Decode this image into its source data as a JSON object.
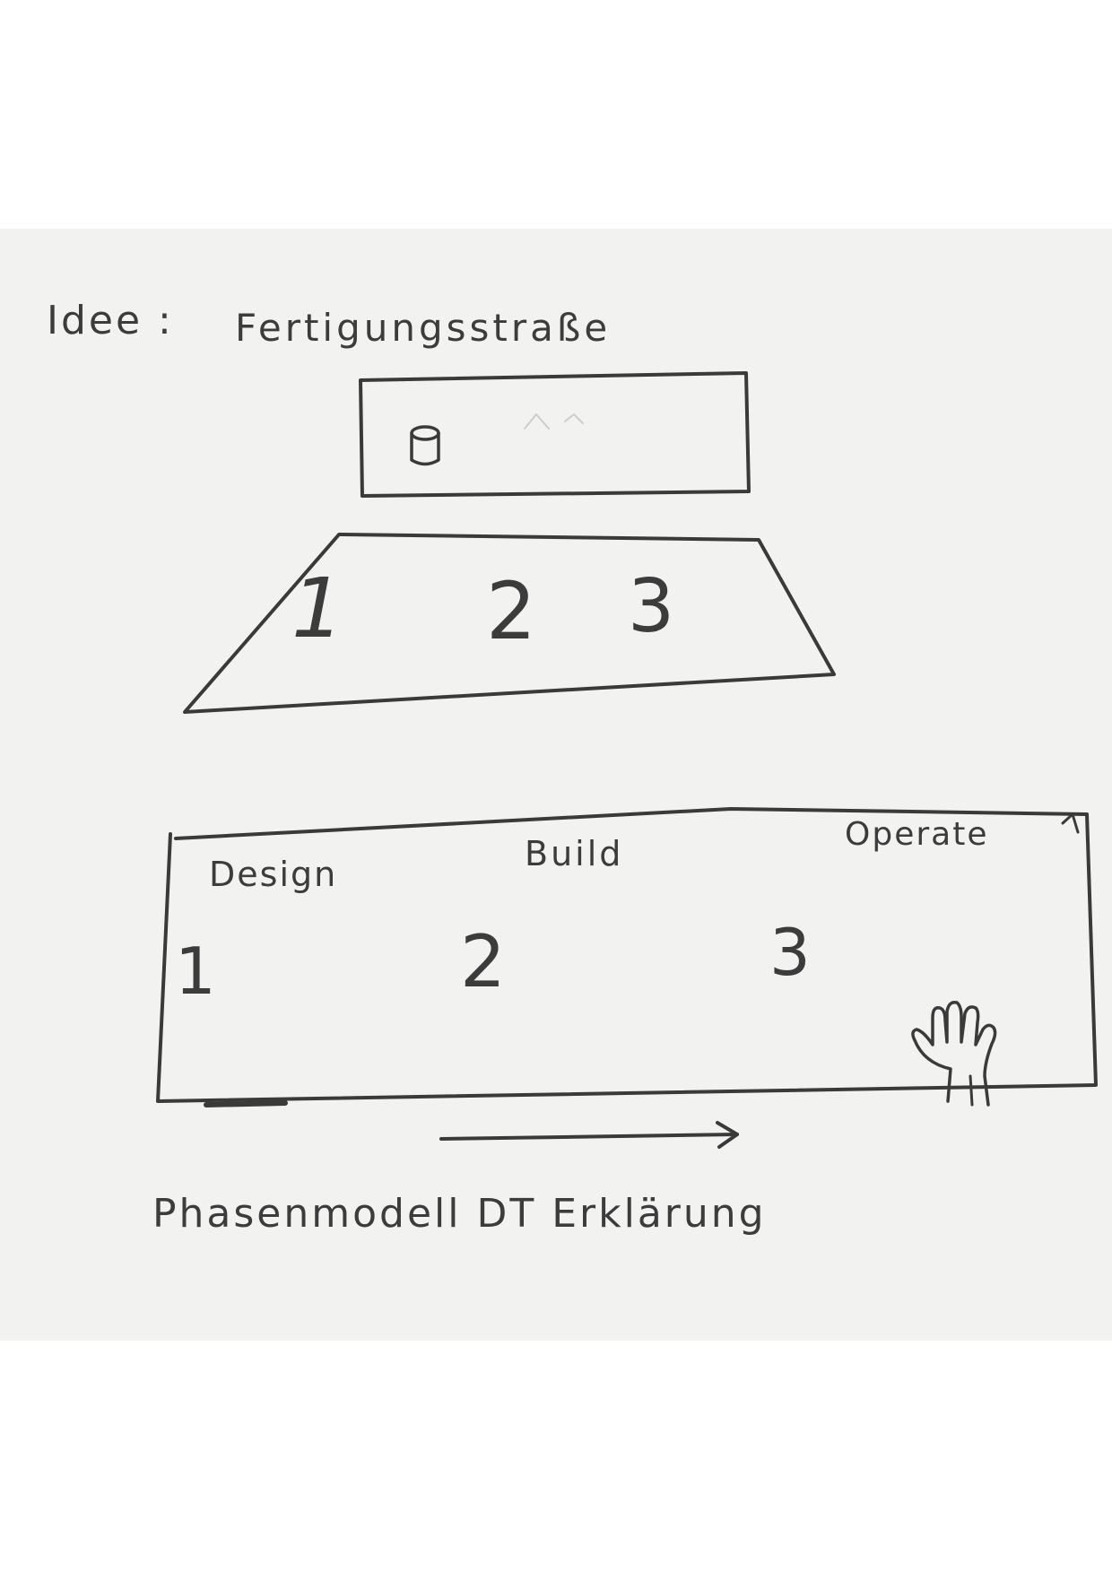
{
  "idea_label": "Idee :",
  "idea_title": "Fertigungsstraße",
  "line_numbers": [
    "1",
    "2",
    "3"
  ],
  "phases": [
    {
      "name": "Design",
      "number": "1"
    },
    {
      "name": "Build",
      "number": "2"
    },
    {
      "name": "Operate",
      "number": "3"
    }
  ],
  "caption": "Phasenmodell DT Erklärung",
  "colors": {
    "ink": "#3a3a3a",
    "paper": "#f2f2f1",
    "background": "#ffffff"
  },
  "icons": [
    "cylinder-icon",
    "hand-icon",
    "arrow-right-icon"
  ]
}
